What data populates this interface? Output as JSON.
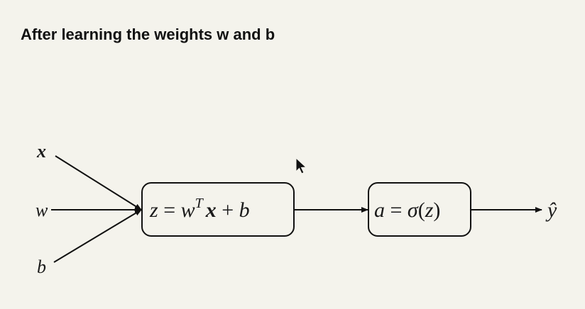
{
  "title": "After learning the weights w and b",
  "diagram": {
    "inputs": [
      {
        "label": "x",
        "bold": true
      },
      {
        "label": "w",
        "bold": false
      },
      {
        "label": "b",
        "bold": false
      }
    ],
    "nodes": [
      {
        "id": "linear",
        "parts": [
          "z",
          " = ",
          "w",
          "T",
          "x",
          " + ",
          "b"
        ]
      },
      {
        "id": "activation",
        "parts": [
          "a",
          " = ",
          "σ",
          "(",
          "z",
          ")"
        ]
      }
    ],
    "output": "ŷ"
  }
}
